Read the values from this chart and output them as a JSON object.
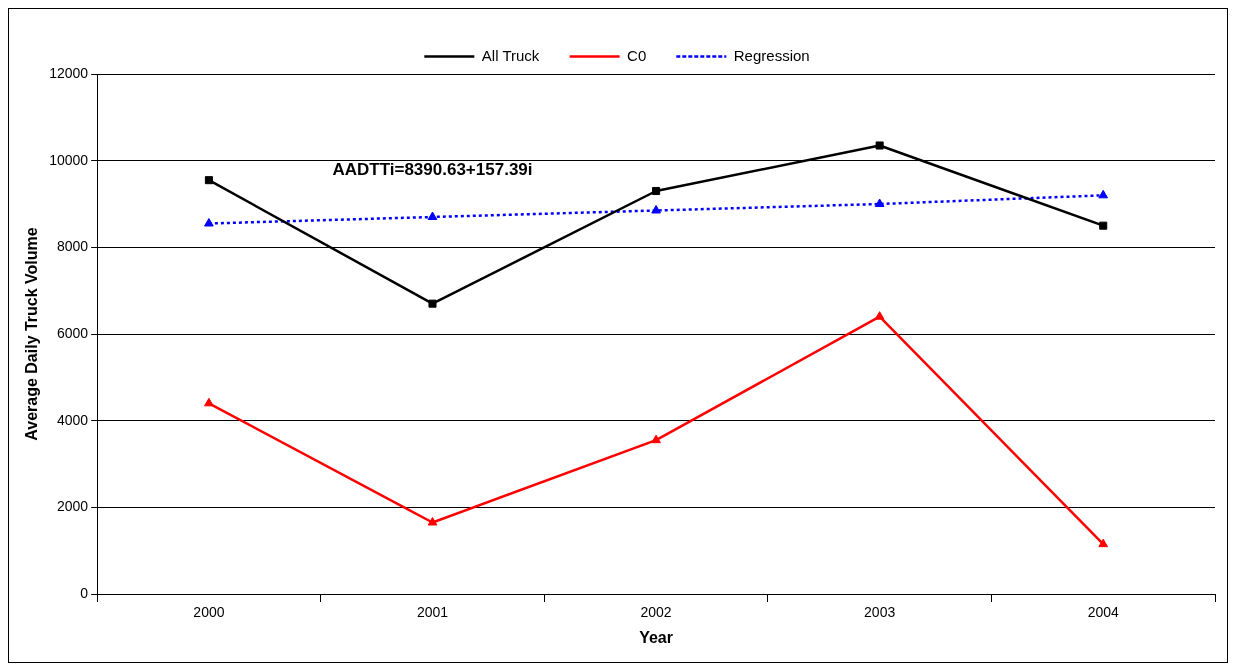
{
  "chart_data": {
    "type": "line",
    "xlabel": "Year",
    "ylabel": "Average Daily Truck Volume",
    "categories": [
      "2000",
      "2001",
      "2002",
      "2003",
      "2004"
    ],
    "series": [
      {
        "name": "All Truck",
        "color": "#000000",
        "values": [
          9550,
          6700,
          9300,
          10350,
          8500
        ],
        "marker": "square",
        "line_style": "solid"
      },
      {
        "name": "C0",
        "color": "#ff0000",
        "values": [
          4400,
          1650,
          3550,
          6400,
          1150
        ],
        "marker": "triangle",
        "line_style": "solid"
      },
      {
        "name": "Regression",
        "color": "#0000ff",
        "values": [
          8550,
          8700,
          8850,
          9000,
          9200
        ],
        "marker": "triangle",
        "line_style": "dotted"
      }
    ],
    "ylim": [
      0,
      12000
    ],
    "yticks": [
      0,
      2000,
      4000,
      6000,
      8000,
      10000,
      12000
    ],
    "grid": "y",
    "legend": "top",
    "annotations": [
      "AADTTi=8390.63+157.39i"
    ]
  }
}
